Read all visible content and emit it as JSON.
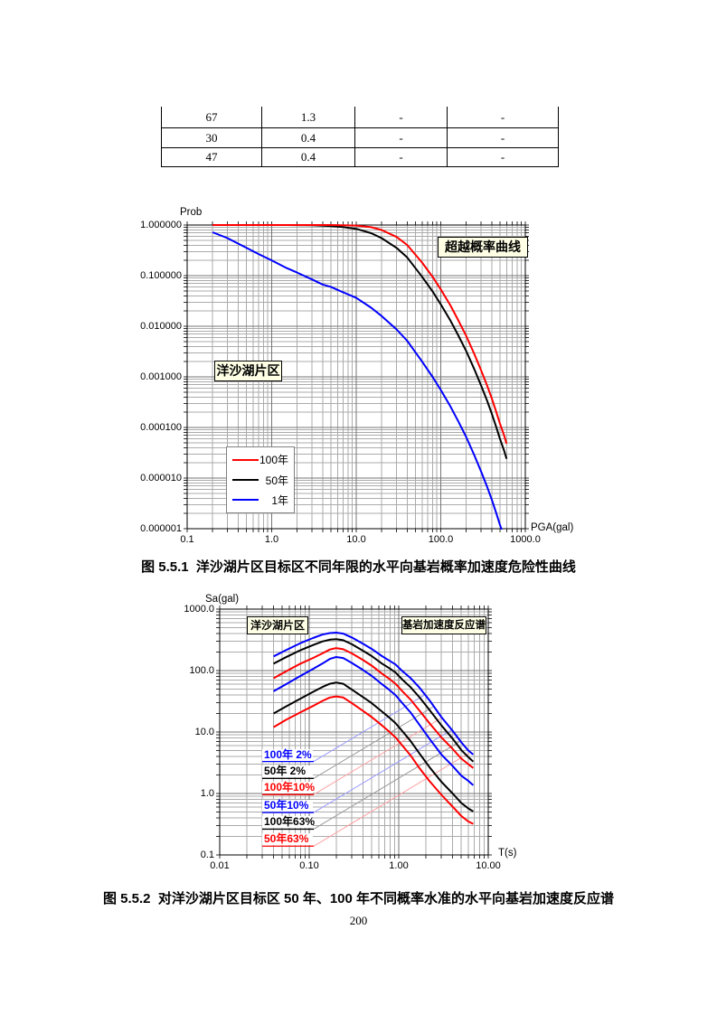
{
  "page_number": "200",
  "colors": {
    "annotation_bg": "#FFFFE6",
    "red": "#FF0000",
    "blue": "#0000FF",
    "black": "#000000"
  },
  "table": {
    "rows": [
      [
        "67",
        "1.3",
        "-",
        "-"
      ],
      [
        "30",
        "0.4",
        "-",
        "-"
      ],
      [
        "47",
        "0.4",
        "-",
        "-"
      ]
    ]
  },
  "fig1": {
    "y_axis_title": "Prob",
    "x_axis_title": "PGA(gal)",
    "x_tick_labels": [
      "0.1",
      "1.0",
      "10.0",
      "100.0",
      "1000.0"
    ],
    "y_tick_labels": [
      "1.000000",
      "0.100000",
      "0.010000",
      "0.001000",
      "0.000100",
      "0.000010",
      "0.000001"
    ],
    "annotation_right": "超越概率曲线",
    "annotation_left": "洋沙湖片区",
    "caption": "图 5.5.1  洋沙湖片区目标区不同年限的水平向基岩概率加速度危险性曲线",
    "chart_data": {
      "type": "line",
      "xscale": "log",
      "yscale": "log",
      "xlim": [
        0.1,
        1000
      ],
      "ylim": [
        1e-06,
        1
      ],
      "xlabel": "PGA(gal)",
      "ylabel": "Prob",
      "grid": "major+minor log grid both axes",
      "legend_position": "lower-left box",
      "series": [
        {
          "name": "100年",
          "color": "#FF0000",
          "points": [
            [
              0.2,
              1
            ],
            [
              0.5,
              1
            ],
            [
              1,
              1
            ],
            [
              2,
              1
            ],
            [
              3,
              1
            ],
            [
              4,
              0.999
            ],
            [
              5,
              0.998
            ],
            [
              7,
              0.9918
            ],
            [
              10,
              0.9753
            ],
            [
              15,
              0.9046
            ],
            [
              20,
              0.7981
            ],
            [
              30,
              0.581
            ],
            [
              40,
              0.405
            ],
            [
              60,
              0.1813
            ],
            [
              80,
              0.0952
            ],
            [
              100,
              0.0535
            ],
            [
              130,
              0.0257
            ],
            [
              160,
              0.0134
            ],
            [
              200,
              0.00648
            ],
            [
              250,
              0.0028
            ],
            [
              300,
              0.00135
            ],
            [
              350,
              0.0007
            ],
            [
              400,
              0.00038
            ],
            [
              450,
              0.00021
            ],
            [
              500,
              0.00012
            ],
            [
              560,
              7e-05
            ],
            [
              600,
              4.8e-05
            ]
          ]
        },
        {
          "name": "50年",
          "color": "#000000",
          "points": [
            [
              0.2,
              1
            ],
            [
              0.5,
              1
            ],
            [
              1,
              1
            ],
            [
              1.5,
              0.9995
            ],
            [
              2,
              0.9978
            ],
            [
              3,
              0.9877
            ],
            [
              4,
              0.9683
            ],
            [
              5,
              0.955
            ],
            [
              7,
              0.909
            ],
            [
              10,
              0.843
            ],
            [
              15,
              0.691
            ],
            [
              20,
              0.551
            ],
            [
              30,
              0.353
            ],
            [
              40,
              0.229
            ],
            [
              60,
              0.0952
            ],
            [
              80,
              0.0488
            ],
            [
              100,
              0.0271
            ],
            [
              130,
              0.0129
            ],
            [
              160,
              0.00673
            ],
            [
              200,
              0.00324
            ],
            [
              250,
              0.0014
            ],
            [
              300,
              0.000675
            ],
            [
              350,
              0.00035
            ],
            [
              400,
              0.00019
            ],
            [
              450,
              0.000105
            ],
            [
              500,
              6e-05
            ],
            [
              560,
              3.5e-05
            ],
            [
              600,
              2.4e-05
            ]
          ]
        },
        {
          "name": "1年",
          "color": "#0000FF",
          "points": [
            [
              0.2,
              0.719
            ],
            [
              0.3,
              0.551
            ],
            [
              0.5,
              0.356
            ],
            [
              0.7,
              0.267
            ],
            [
              1,
              0.2
            ],
            [
              1.5,
              0.141
            ],
            [
              2,
              0.115
            ],
            [
              3,
              0.0842
            ],
            [
              4,
              0.0667
            ],
            [
              5,
              0.0601
            ],
            [
              7,
              0.0469
            ],
            [
              10,
              0.0363
            ],
            [
              15,
              0.0232
            ],
            [
              20,
              0.0159
            ],
            [
              30,
              0.00866
            ],
            [
              40,
              0.00519
            ],
            [
              60,
              0.002
            ],
            [
              80,
              0.001
            ],
            [
              100,
              0.00055
            ],
            [
              130,
              0.00026
            ],
            [
              160,
              0.000135
            ],
            [
              200,
              6.5e-05
            ],
            [
              250,
              2.8e-05
            ],
            [
              300,
              1.35e-05
            ],
            [
              350,
              7e-06
            ],
            [
              400,
              3.8e-06
            ],
            [
              450,
              2.1e-06
            ],
            [
              500,
              1.2e-06
            ],
            [
              560,
              7e-07
            ]
          ]
        }
      ]
    }
  },
  "fig2": {
    "y_axis_title": "Sa(gal)",
    "x_axis_title": "T(s)",
    "x_tick_labels": [
      "0.01",
      "0.10",
      "1.00",
      "10.00"
    ],
    "y_tick_labels": [
      "1000.0",
      "100.0",
      "10.0",
      "1.0",
      "0.1"
    ],
    "annotation_left": "洋沙湖片区",
    "annotation_right": "基岩加速度反应谱",
    "caption": "图 5.5.2  对洋沙湖片区目标区 50 年、100 年不同概率水准的水平向基岩加速度反应谱",
    "chart_data": {
      "type": "line",
      "xscale": "log",
      "yscale": "log",
      "xlim": [
        0.01,
        10
      ],
      "ylim": [
        0.1,
        1000
      ],
      "xlabel": "T(s)",
      "ylabel": "Sa(gal)",
      "grid": "major+minor log grid both axes",
      "leader_slope_loglog": 0.87,
      "legend": [
        {
          "label": "100年 2%",
          "color": "#0000FF",
          "leader_color": "#9999FF",
          "sa": 3.32
        },
        {
          "label": "50年 2%",
          "color": "#000000",
          "leader_color": "#999999",
          "sa": 1.76
        },
        {
          "label": "100年10%",
          "color": "#FF0000",
          "leader_color": "#FFA0A0",
          "sa": 0.96
        },
        {
          "label": "50年10%",
          "color": "#0000FF",
          "leader_color": "#9999FF",
          "sa": 0.49
        },
        {
          "label": "100年63%",
          "color": "#000000",
          "leader_color": "#999999",
          "sa": 0.263
        },
        {
          "label": "50年63%",
          "color": "#FF0000",
          "leader_color": "#FFA0A0",
          "sa": 0.139
        }
      ],
      "series": [
        {
          "name": "100年 2%",
          "color": "#0000FF",
          "points": [
            [
              0.04,
              170
            ],
            [
              0.055,
              215
            ],
            [
              0.08,
              280
            ],
            [
              0.11,
              338
            ],
            [
              0.14,
              385
            ],
            [
              0.17,
              408
            ],
            [
              0.2,
              415
            ],
            [
              0.24,
              400
            ],
            [
              0.3,
              345
            ],
            [
              0.4,
              272
            ],
            [
              0.5,
              225
            ],
            [
              0.65,
              172
            ],
            [
              0.78,
              146
            ],
            [
              0.92,
              126
            ],
            [
              1.1,
              98
            ],
            [
              1.35,
              76
            ],
            [
              1.7,
              53
            ],
            [
              2.2,
              33
            ],
            [
              3.0,
              17.5
            ],
            [
              4.0,
              10.5
            ],
            [
              5.0,
              6.8
            ],
            [
              6.0,
              5.0
            ],
            [
              6.8,
              4.3
            ]
          ]
        },
        {
          "name": "50年 2%",
          "color": "#000000",
          "points": [
            [
              0.04,
              130
            ],
            [
              0.055,
              165
            ],
            [
              0.08,
              215
            ],
            [
              0.11,
              260
            ],
            [
              0.14,
              298
            ],
            [
              0.17,
              318
            ],
            [
              0.2,
              325
            ],
            [
              0.24,
              312
            ],
            [
              0.3,
              268
            ],
            [
              0.4,
              210
            ],
            [
              0.5,
              172
            ],
            [
              0.65,
              130
            ],
            [
              0.78,
              110
            ],
            [
              0.92,
              93
            ],
            [
              1.1,
              71
            ],
            [
              1.35,
              54
            ],
            [
              1.7,
              37
            ],
            [
              2.2,
              23
            ],
            [
              3.0,
              12.8
            ],
            [
              4.0,
              7.8
            ],
            [
              5.0,
              5.1
            ],
            [
              6.0,
              3.9
            ],
            [
              6.8,
              3.3
            ]
          ]
        },
        {
          "name": "100年10%",
          "color": "#FF0000",
          "points": [
            [
              0.04,
              75
            ],
            [
              0.055,
              97
            ],
            [
              0.08,
              130
            ],
            [
              0.11,
              160
            ],
            [
              0.14,
              190
            ],
            [
              0.17,
              220
            ],
            [
              0.2,
              232
            ],
            [
              0.24,
              222
            ],
            [
              0.3,
              190
            ],
            [
              0.4,
              148
            ],
            [
              0.5,
              120
            ],
            [
              0.65,
              89
            ],
            [
              0.78,
              74
            ],
            [
              0.92,
              61
            ],
            [
              1.1,
              46
            ],
            [
              1.35,
              34
            ],
            [
              1.7,
              22.5
            ],
            [
              2.2,
              14
            ],
            [
              3.0,
              8.2
            ],
            [
              4.0,
              5.3
            ],
            [
              5.0,
              3.7
            ],
            [
              6.0,
              3.0
            ],
            [
              6.8,
              2.6
            ]
          ]
        },
        {
          "name": "50年10%",
          "color": "#0000FF",
          "points": [
            [
              0.04,
              46
            ],
            [
              0.055,
              60
            ],
            [
              0.08,
              82
            ],
            [
              0.11,
              106
            ],
            [
              0.14,
              130
            ],
            [
              0.17,
              155
            ],
            [
              0.2,
              166
            ],
            [
              0.24,
              160
            ],
            [
              0.3,
              133
            ],
            [
              0.4,
              102
            ],
            [
              0.5,
              82
            ],
            [
              0.65,
              60
            ],
            [
              0.78,
              49
            ],
            [
              0.92,
              40
            ],
            [
              1.1,
              29.5
            ],
            [
              1.35,
              21
            ],
            [
              1.7,
              13.2
            ],
            [
              2.2,
              7.8
            ],
            [
              3.0,
              4.3
            ],
            [
              4.0,
              2.8
            ],
            [
              5.0,
              1.95
            ],
            [
              6.0,
              1.6
            ],
            [
              6.8,
              1.36
            ]
          ]
        },
        {
          "name": "100年63%",
          "color": "#000000",
          "points": [
            [
              0.04,
              20
            ],
            [
              0.055,
              26
            ],
            [
              0.08,
              35
            ],
            [
              0.11,
              45
            ],
            [
              0.14,
              54
            ],
            [
              0.17,
              61
            ],
            [
              0.2,
              64
            ],
            [
              0.24,
              61
            ],
            [
              0.3,
              49
            ],
            [
              0.4,
              37
            ],
            [
              0.5,
              29.5
            ],
            [
              0.65,
              21.5
            ],
            [
              0.78,
              17.3
            ],
            [
              0.92,
              14
            ],
            [
              1.1,
              10.3
            ],
            [
              1.35,
              7.2
            ],
            [
              1.7,
              4.5
            ],
            [
              2.2,
              2.7
            ],
            [
              3.0,
              1.55
            ],
            [
              4.0,
              1.0
            ],
            [
              5.0,
              0.7
            ],
            [
              6.0,
              0.57
            ],
            [
              6.8,
              0.51
            ]
          ]
        },
        {
          "name": "50年63%",
          "color": "#FF0000",
          "points": [
            [
              0.04,
              12
            ],
            [
              0.055,
              15.8
            ],
            [
              0.08,
              21
            ],
            [
              0.11,
              26.5
            ],
            [
              0.14,
              32
            ],
            [
              0.17,
              36.5
            ],
            [
              0.2,
              38
            ],
            [
              0.24,
              36.5
            ],
            [
              0.3,
              29.5
            ],
            [
              0.4,
              22
            ],
            [
              0.5,
              17.5
            ],
            [
              0.65,
              12.8
            ],
            [
              0.78,
              10.2
            ],
            [
              0.92,
              8.2
            ],
            [
              1.1,
              6.0
            ],
            [
              1.35,
              4.2
            ],
            [
              1.7,
              2.6
            ],
            [
              2.2,
              1.6
            ],
            [
              3.0,
              0.95
            ],
            [
              4.0,
              0.61
            ],
            [
              5.0,
              0.43
            ],
            [
              6.0,
              0.35
            ],
            [
              6.8,
              0.32
            ]
          ]
        }
      ]
    }
  }
}
